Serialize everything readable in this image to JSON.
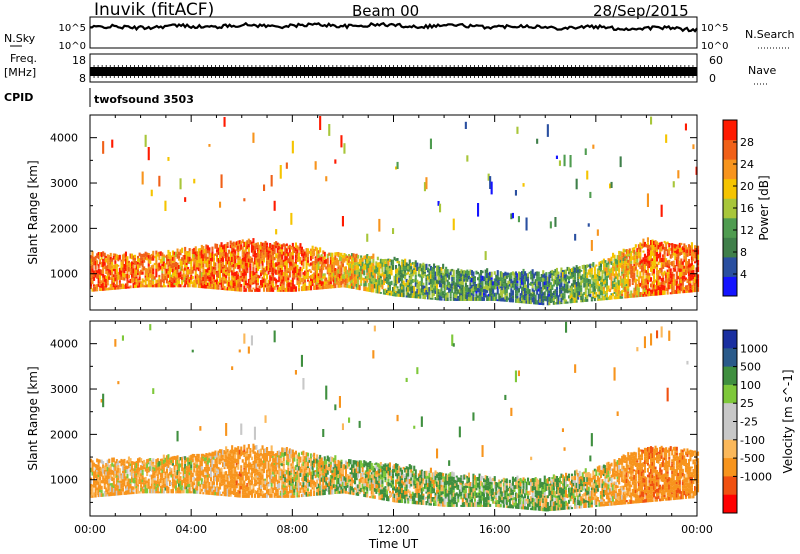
{
  "header": {
    "site": "Inuvik (fitACF)",
    "beam": "Beam 00",
    "date": "28/Sep/2015"
  },
  "noise_panel": {
    "left_label": "N.Sky",
    "right_label": "N.Search",
    "left_ticks": [
      "10^5",
      "10^0"
    ],
    "right_ticks": [
      "10^5",
      "10^0"
    ]
  },
  "freq_panel": {
    "left_label_1": "Freq.",
    "left_label_2": "[MHz]",
    "right_label": "Nave",
    "left_ticks": [
      "18",
      "8"
    ],
    "right_ticks": [
      "60",
      "0"
    ]
  },
  "cpid_panel": {
    "label": "CPID",
    "value": "twofsound 3503"
  },
  "colors": {
    "power_scale": [
      "#1414ff",
      "#2a4fa0",
      "#3f7f4a",
      "#4f9c50",
      "#a8c63a",
      "#f5c400",
      "#f7941d",
      "#f06018",
      "#ff1a00"
    ],
    "velocity_scale": [
      "#ff0000",
      "#f05010",
      "#f7941d",
      "#fbb85a",
      "#c8c8c8",
      "#c8c8c8",
      "#7ec83a",
      "#3f8f3f",
      "#2a5a8a",
      "#1a2fa0"
    ]
  },
  "chart_data": [
    {
      "type": "heatmap",
      "name": "power",
      "xlabel": "",
      "ylabel": "Slant Range [km]",
      "xlim": [
        0,
        24
      ],
      "ylim": [
        200,
        4500
      ],
      "yticks": [
        "1000",
        "2000",
        "3000",
        "4000"
      ],
      "colorbar_label": "Power [dB]",
      "colorbar_ticks": [
        "4",
        "8",
        "12",
        "16",
        "20",
        "24",
        "28"
      ],
      "colorbar_range": [
        0,
        32
      ],
      "main_band": [
        {
          "t": 0,
          "low": 600,
          "high": 1400,
          "level": 27
        },
        {
          "t": 2,
          "low": 700,
          "high": 1400,
          "level": 25
        },
        {
          "t": 4,
          "low": 700,
          "high": 1500,
          "level": 24
        },
        {
          "t": 6,
          "low": 600,
          "high": 1700,
          "level": 27
        },
        {
          "t": 8,
          "low": 600,
          "high": 1600,
          "level": 26
        },
        {
          "t": 10,
          "low": 700,
          "high": 1400,
          "level": 22
        },
        {
          "t": 12,
          "low": 500,
          "high": 1300,
          "level": 14
        },
        {
          "t": 14,
          "low": 400,
          "high": 1100,
          "level": 11
        },
        {
          "t": 16,
          "low": 400,
          "high": 1000,
          "level": 10
        },
        {
          "t": 18,
          "low": 300,
          "high": 1000,
          "level": 10
        },
        {
          "t": 20,
          "low": 400,
          "high": 1200,
          "level": 14
        },
        {
          "t": 22,
          "low": 500,
          "high": 1700,
          "level": 25
        },
        {
          "t": 24,
          "low": 600,
          "high": 1600,
          "level": 27
        }
      ]
    },
    {
      "type": "heatmap",
      "name": "velocity",
      "xlabel": "Time UT",
      "ylabel": "Slant Range [km]",
      "xlim": [
        0,
        24
      ],
      "ylim": [
        200,
        4500
      ],
      "xticks": [
        "00:00",
        "04:00",
        "08:00",
        "12:00",
        "16:00",
        "20:00",
        "00:00"
      ],
      "yticks": [
        "1000",
        "2000",
        "3000",
        "4000"
      ],
      "colorbar_label": "Velocity [m s^-1]",
      "colorbar_ticks": [
        "1000",
        "500",
        "100",
        "25",
        "-25",
        "-100",
        "-500",
        "-1000"
      ],
      "main_band": [
        {
          "t": 0,
          "low": 600,
          "high": 1400,
          "level": -200
        },
        {
          "t": 2,
          "low": 700,
          "high": 1400,
          "level": -150
        },
        {
          "t": 4,
          "low": 700,
          "high": 1500,
          "level": -120
        },
        {
          "t": 6,
          "low": 600,
          "high": 1700,
          "level": -300
        },
        {
          "t": 8,
          "low": 600,
          "high": 1600,
          "level": -100
        },
        {
          "t": 10,
          "low": 700,
          "high": 1400,
          "level": 50
        },
        {
          "t": 12,
          "low": 500,
          "high": 1300,
          "level": 80
        },
        {
          "t": 14,
          "low": 400,
          "high": 1100,
          "level": 120
        },
        {
          "t": 16,
          "low": 400,
          "high": 1000,
          "level": 150
        },
        {
          "t": 18,
          "low": 300,
          "high": 1000,
          "level": 100
        },
        {
          "t": 20,
          "low": 400,
          "high": 1200,
          "level": -50
        },
        {
          "t": 22,
          "low": 500,
          "high": 1700,
          "level": -400
        },
        {
          "t": 24,
          "low": 600,
          "high": 1600,
          "level": -300
        }
      ]
    }
  ]
}
